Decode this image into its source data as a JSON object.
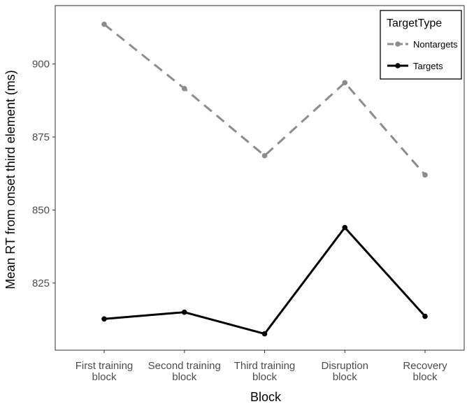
{
  "chart_data": {
    "type": "line",
    "categories": [
      [
        "First training",
        "block"
      ],
      [
        "Second training",
        "block"
      ],
      [
        "Third training",
        "block"
      ],
      [
        "Disruption",
        "block"
      ],
      [
        "Recovery",
        "block"
      ]
    ],
    "series": [
      {
        "name": "Nontargets",
        "values": [
          913.6,
          891.6,
          868.6,
          893.6,
          862.0
        ],
        "color": "#8c8c8c",
        "dash": true
      },
      {
        "name": "Targets",
        "values": [
          812.7,
          815.0,
          807.6,
          844.0,
          813.6
        ],
        "color": "#000000",
        "dash": false
      }
    ],
    "xlabel": "Block",
    "ylabel": "Mean RT from onset third element (ms)",
    "ylim": [
      802,
      920
    ],
    "yticks": [
      825,
      850,
      875,
      900
    ],
    "legend": {
      "title": "TargetType",
      "position": "top-right"
    },
    "grid": false
  }
}
